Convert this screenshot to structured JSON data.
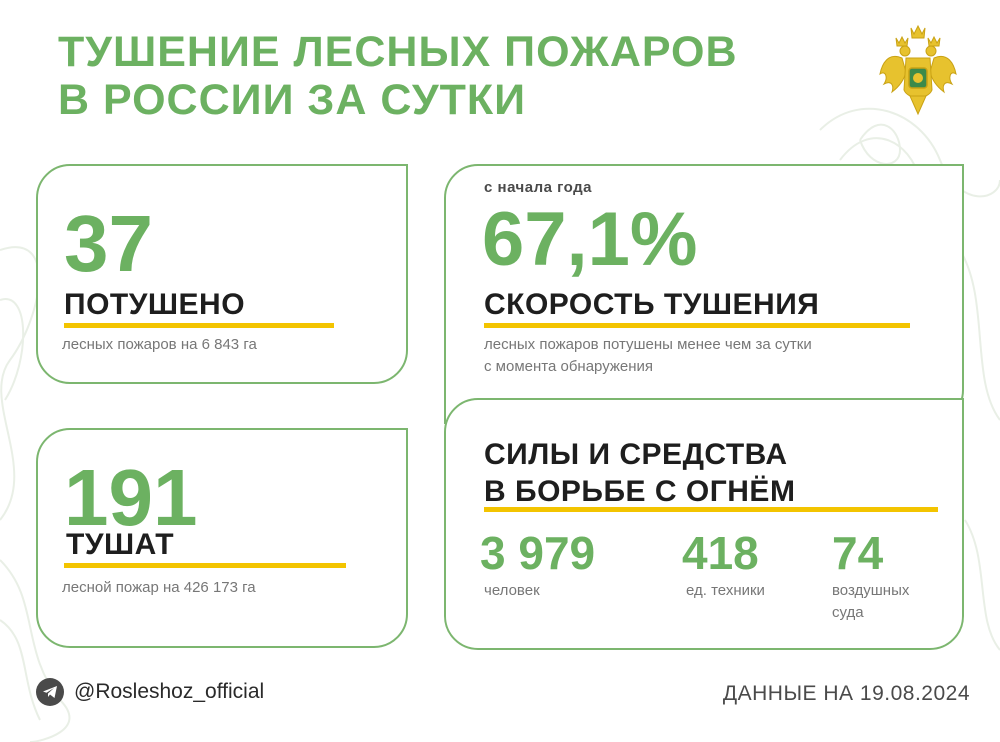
{
  "header": {
    "title_line1": "ТУШЕНИЕ ЛЕСНЫХ ПОЖАРОВ",
    "title_line2": "В РОССИИ ЗА СУТКИ",
    "emblem_icon": "double-headed-eagle-emblem"
  },
  "extinguished": {
    "number": "37",
    "label": "ПОТУШЕНО",
    "description": "лесных пожаров на 6 843 га"
  },
  "extinguishing": {
    "number": "191",
    "label": "ТУШАТ",
    "description": "лесной пожар на 426 173 га"
  },
  "speed": {
    "caption": "с начала года",
    "value": "67,1%",
    "label": "СКОРОСТЬ ТУШЕНИЯ",
    "description_line1": "лесных пожаров потушены менее чем за сутки",
    "description_line2": "с момента обнаружения"
  },
  "forces": {
    "title_line1": "СИЛЫ И СРЕДСТВА",
    "title_line2": "В БОРЬБЕ С ОГНЁМ",
    "stats": [
      {
        "value": "3 979",
        "unit": "человек"
      },
      {
        "value": "418",
        "unit": "ед. техники"
      },
      {
        "value": "74",
        "unit_line1": "воздушных",
        "unit_line2": "суда"
      }
    ]
  },
  "footer": {
    "telegram_handle": "@Rosleshoz_official",
    "data_date": "ДАННЫЕ НА 19.08.2024"
  },
  "colors": {
    "accent_green": "#6cb161",
    "border_green": "#7cb66f",
    "underline_yellow": "#f3c400",
    "text_dark": "#1e1e1e",
    "text_gray": "#777777"
  }
}
